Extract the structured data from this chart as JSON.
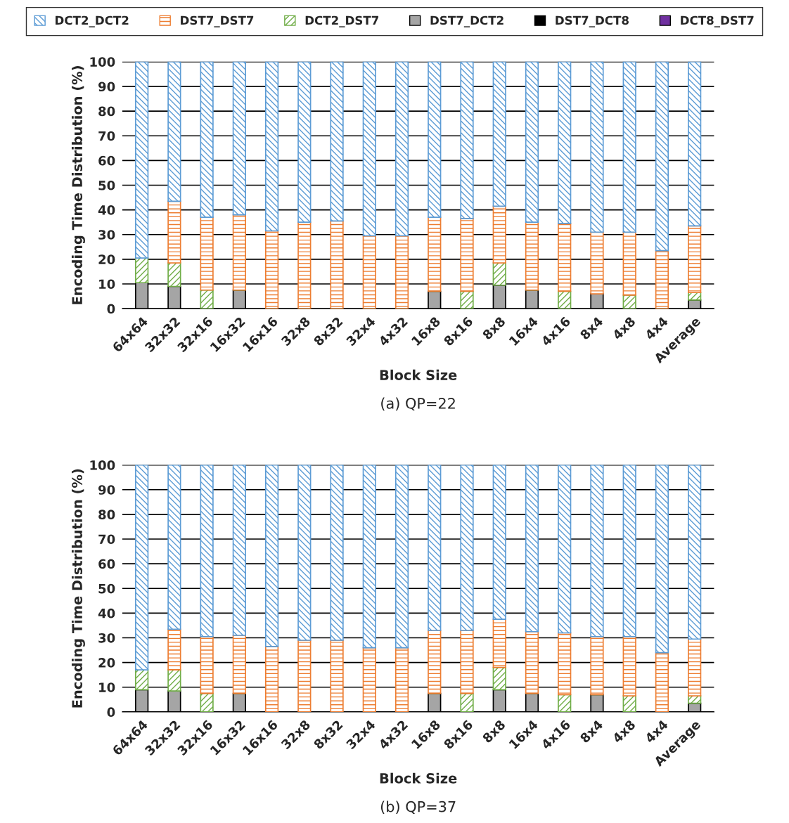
{
  "chart_data": [
    {
      "type": "bar",
      "stacked": true,
      "title": "(a) QP=22",
      "xlabel": "Block Size",
      "ylabel": "Encoding Time Distribution (%)",
      "categories": [
        "64x64",
        "32x32",
        "32x16",
        "16x32",
        "16x16",
        "32x8",
        "8x32",
        "32x4",
        "4x32",
        "16x8",
        "8x16",
        "8x8",
        "16x4",
        "4x16",
        "8x4",
        "4x8",
        "4x4",
        "Average"
      ],
      "ylim": [
        0,
        100
      ],
      "yticks": [
        0,
        10,
        20,
        30,
        40,
        50,
        60,
        70,
        80,
        90,
        100
      ],
      "grid": "y",
      "legend": "top",
      "series": [
        {
          "name": "DCT8_DST7",
          "color": "#7030a0",
          "values": [
            0,
            0,
            0,
            0,
            0,
            0,
            0,
            0,
            0,
            0,
            0,
            0,
            0,
            0,
            0,
            0,
            0,
            0
          ]
        },
        {
          "name": "DST7_DCT8",
          "color": "#000000",
          "values": [
            0,
            0,
            0,
            0,
            0,
            0,
            0,
            0,
            0,
            0,
            0,
            0,
            0,
            0,
            0,
            0,
            0,
            0
          ]
        },
        {
          "name": "DST7_DCT2",
          "color": "#a5a5a5",
          "values": [
            10.5,
            9,
            0,
            7.5,
            0,
            0,
            0,
            0,
            0,
            7,
            0,
            9.5,
            7.5,
            0,
            6,
            0,
            0,
            3.5
          ]
        },
        {
          "name": "DCT2_DST7",
          "color": "#70ad47",
          "values": [
            10,
            9.5,
            7.5,
            0,
            0,
            0,
            0,
            0,
            0,
            0,
            7,
            9,
            0,
            7,
            0,
            5.5,
            0,
            3
          ]
        },
        {
          "name": "DST7_DST7",
          "color": "#ed7d31",
          "values": [
            0,
            25,
            29.5,
            30.5,
            31.5,
            35,
            35.5,
            29.5,
            29.5,
            30,
            29.5,
            23,
            27.5,
            27.5,
            25,
            25.5,
            23.5,
            27
          ]
        },
        {
          "name": "DCT2_DCT2",
          "color": "#5b9bd5",
          "values": [
            79.5,
            56.5,
            63,
            62,
            68.5,
            65,
            64.5,
            70.5,
            70.5,
            63,
            63.5,
            58.5,
            65,
            65.5,
            69,
            69,
            76.5,
            66.5
          ]
        }
      ]
    },
    {
      "type": "bar",
      "stacked": true,
      "title": "(b) QP=37",
      "xlabel": "Block Size",
      "ylabel": "Encoding Time Distribution (%)",
      "categories": [
        "64x64",
        "32x32",
        "32x16",
        "16x32",
        "16x16",
        "32x8",
        "8x32",
        "32x4",
        "4x32",
        "16x8",
        "8x16",
        "8x8",
        "16x4",
        "4x16",
        "8x4",
        "4x8",
        "4x4",
        "Average"
      ],
      "ylim": [
        0,
        100
      ],
      "yticks": [
        0,
        10,
        20,
        30,
        40,
        50,
        60,
        70,
        80,
        90,
        100
      ],
      "grid": "y",
      "series": [
        {
          "color": "#7030a0",
          "values": [
            0,
            0,
            0,
            0,
            0,
            0,
            0,
            0,
            0,
            0,
            0,
            0,
            0,
            0,
            0,
            0,
            0,
            0
          ]
        },
        {
          "color": "#000000",
          "values": [
            0,
            0,
            0,
            0,
            0,
            0,
            0,
            0,
            0,
            0,
            0,
            0,
            0,
            0,
            0,
            0,
            0,
            0
          ]
        },
        {
          "color": "#a5a5a5",
          "values": [
            9,
            8.5,
            0,
            7.5,
            0,
            0,
            0,
            0,
            0,
            7.5,
            0,
            9,
            7.5,
            0,
            7,
            0,
            0,
            3.5
          ]
        },
        {
          "color": "#70ad47",
          "values": [
            8,
            8.5,
            7.5,
            0,
            0,
            0,
            0,
            0,
            0,
            0,
            7.5,
            9,
            0,
            7,
            0,
            6.5,
            0,
            3
          ]
        },
        {
          "color": "#ed7d31",
          "values": [
            0,
            16.5,
            23,
            23.5,
            26.5,
            29,
            29,
            26,
            26,
            25.5,
            25.5,
            19.5,
            25,
            25,
            23.5,
            24,
            24,
            23
          ]
        },
        {
          "color": "#5b9bd5",
          "values": [
            83,
            66.5,
            69.5,
            69,
            73.5,
            71,
            71,
            74,
            74,
            67,
            67,
            62.5,
            67.5,
            68,
            69.5,
            69.5,
            76,
            70.5
          ]
        }
      ]
    }
  ]
}
